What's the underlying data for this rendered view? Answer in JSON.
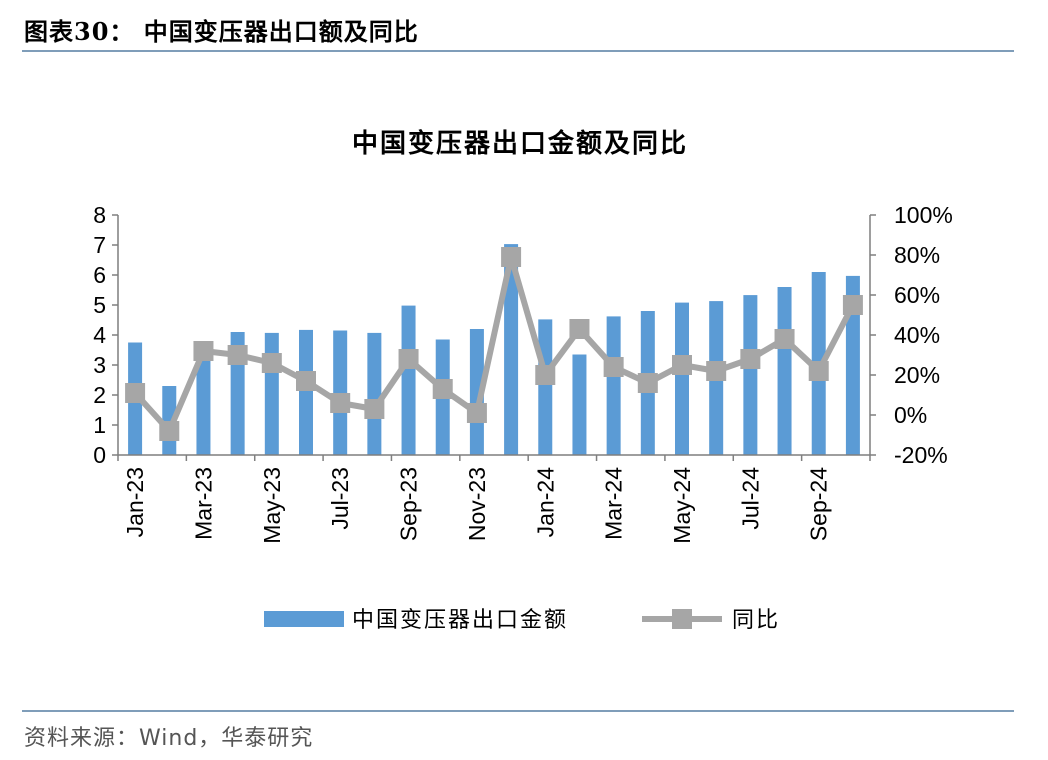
{
  "header": {
    "figure_title": "图表30：  中国变压器出口额及同比"
  },
  "footer": {
    "source": "资料来源：Wind，华泰研究"
  },
  "colors": {
    "bar": "#5b9bd5",
    "line": "#a6a6a6",
    "rule": "#7f9db9"
  },
  "chart_data": {
    "type": "bar+line",
    "title": "中国变压器出口金额及同比",
    "categories": [
      "Jan-23",
      "Feb-23",
      "Mar-23",
      "Apr-23",
      "May-23",
      "Jun-23",
      "Jul-23",
      "Aug-23",
      "Sep-23",
      "Oct-23",
      "Nov-23",
      "Dec-23",
      "Jan-24",
      "Feb-24",
      "Mar-24",
      "Apr-24",
      "May-24",
      "Jun-24",
      "Jul-24",
      "Aug-24",
      "Sep-24",
      "Oct-24"
    ],
    "tick_labels": [
      "Jan-23",
      "Mar-23",
      "May-23",
      "Jul-23",
      "Sep-23",
      "Nov-23",
      "Jan-24",
      "Mar-24",
      "May-24",
      "Jul-24",
      "Sep-24"
    ],
    "tick_label_indices": [
      0,
      2,
      4,
      6,
      8,
      10,
      12,
      14,
      16,
      18,
      20
    ],
    "series": [
      {
        "name": "中国变压器出口金额",
        "type": "bar",
        "axis": "left",
        "values": [
          3.75,
          2.3,
          3.3,
          4.1,
          4.07,
          4.17,
          4.15,
          4.07,
          4.98,
          3.85,
          4.2,
          7.03,
          4.52,
          3.35,
          4.62,
          4.8,
          5.08,
          5.13,
          5.33,
          5.6,
          6.1,
          5.97
        ]
      },
      {
        "name": "同比",
        "type": "line",
        "axis": "right",
        "unit": "%",
        "values": [
          11,
          -8,
          32,
          30,
          26,
          17,
          6,
          3,
          28,
          13,
          1,
          79,
          20,
          43,
          24,
          16,
          25,
          22,
          28,
          38,
          22,
          55
        ]
      }
    ],
    "y_left": {
      "min": 0,
      "max": 8,
      "ticks": [
        "0",
        "1",
        "2",
        "3",
        "4",
        "5",
        "6",
        "7",
        "8"
      ]
    },
    "y_right": {
      "min": -20,
      "max": 100,
      "ticks": [
        "-20%",
        "0%",
        "20%",
        "40%",
        "60%",
        "80%",
        "100%"
      ]
    },
    "legend": {
      "position": "bottom",
      "items": [
        "中国变压器出口金额",
        "同比"
      ]
    },
    "grid": false
  }
}
